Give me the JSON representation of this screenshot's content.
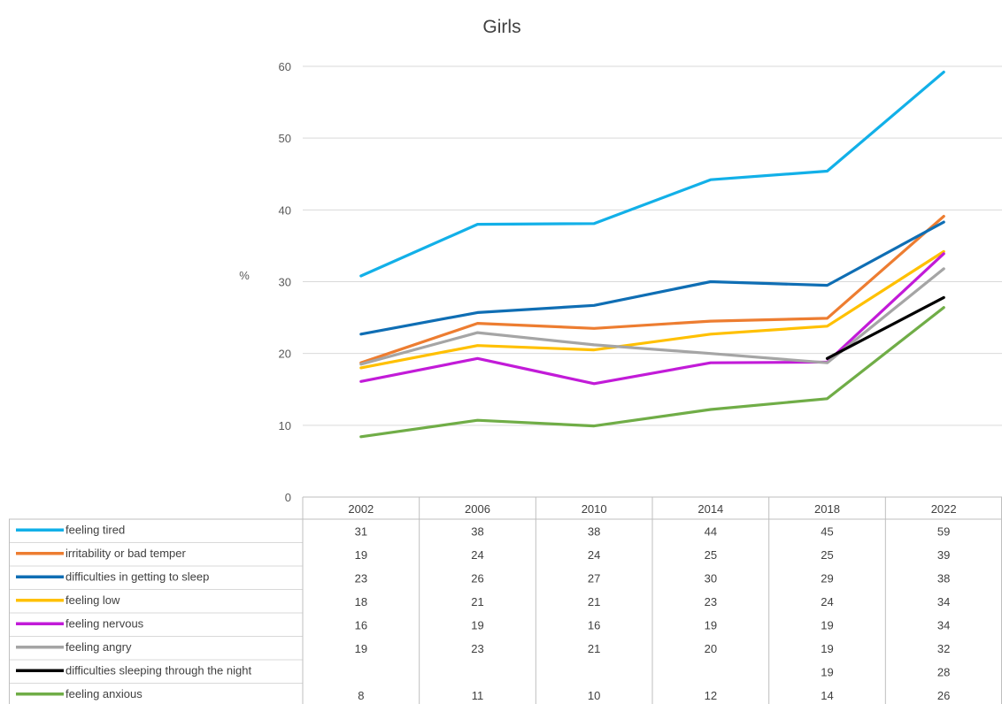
{
  "chart_data": {
    "type": "line",
    "title": "Girls",
    "ylabel": "%",
    "xlabel": "",
    "ylim": [
      0,
      60
    ],
    "yticks": [
      0,
      10,
      20,
      30,
      40,
      50,
      60
    ],
    "grid": true,
    "legend": "data-table-below",
    "categories": [
      "2002",
      "2006",
      "2010",
      "2014",
      "2018",
      "2022"
    ],
    "series": [
      {
        "name": "feeling tired",
        "color": "#12B0E8",
        "values": [
          30.8,
          38.0,
          38.1,
          44.2,
          45.4,
          59.2
        ],
        "labels": [
          "31",
          "38",
          "38",
          "44",
          "45",
          "59"
        ]
      },
      {
        "name": "irritability or bad temper",
        "color": "#ED7D31",
        "values": [
          18.7,
          24.2,
          23.5,
          24.5,
          24.9,
          39.1
        ],
        "labels": [
          "19",
          "24",
          "24",
          "25",
          "25",
          "39"
        ]
      },
      {
        "name": "difficulties in getting to sleep",
        "color": "#0F6EB4",
        "values": [
          22.7,
          25.7,
          26.7,
          30.0,
          29.5,
          38.3
        ],
        "labels": [
          "23",
          "26",
          "27",
          "30",
          "29",
          "38"
        ]
      },
      {
        "name": "feeling low",
        "color": "#FFC000",
        "values": [
          18.0,
          21.1,
          20.5,
          22.7,
          23.8,
          34.2
        ],
        "labels": [
          "18",
          "21",
          "21",
          "23",
          "24",
          "34"
        ]
      },
      {
        "name": "feeling nervous",
        "color": "#C21BD8",
        "values": [
          16.1,
          19.3,
          15.8,
          18.7,
          18.8,
          33.9
        ],
        "labels": [
          "16",
          "19",
          "16",
          "19",
          "19",
          "34"
        ]
      },
      {
        "name": "feeling angry",
        "color": "#A5A5A5",
        "values": [
          18.5,
          22.9,
          21.2,
          20.0,
          18.7,
          31.8
        ],
        "labels": [
          "19",
          "23",
          "21",
          "20",
          "19",
          "32"
        ]
      },
      {
        "name": "difficulties sleeping through the night",
        "color": "#000000",
        "values": [
          null,
          null,
          null,
          null,
          19.3,
          27.8
        ],
        "labels": [
          "",
          "",
          "",
          "",
          "19",
          "28"
        ]
      },
      {
        "name": "feeling anxious",
        "color": "#70AD47",
        "values": [
          8.4,
          10.7,
          9.9,
          12.2,
          13.7,
          26.4
        ],
        "labels": [
          "8",
          "11",
          "10",
          "12",
          "14",
          "26"
        ]
      }
    ]
  }
}
